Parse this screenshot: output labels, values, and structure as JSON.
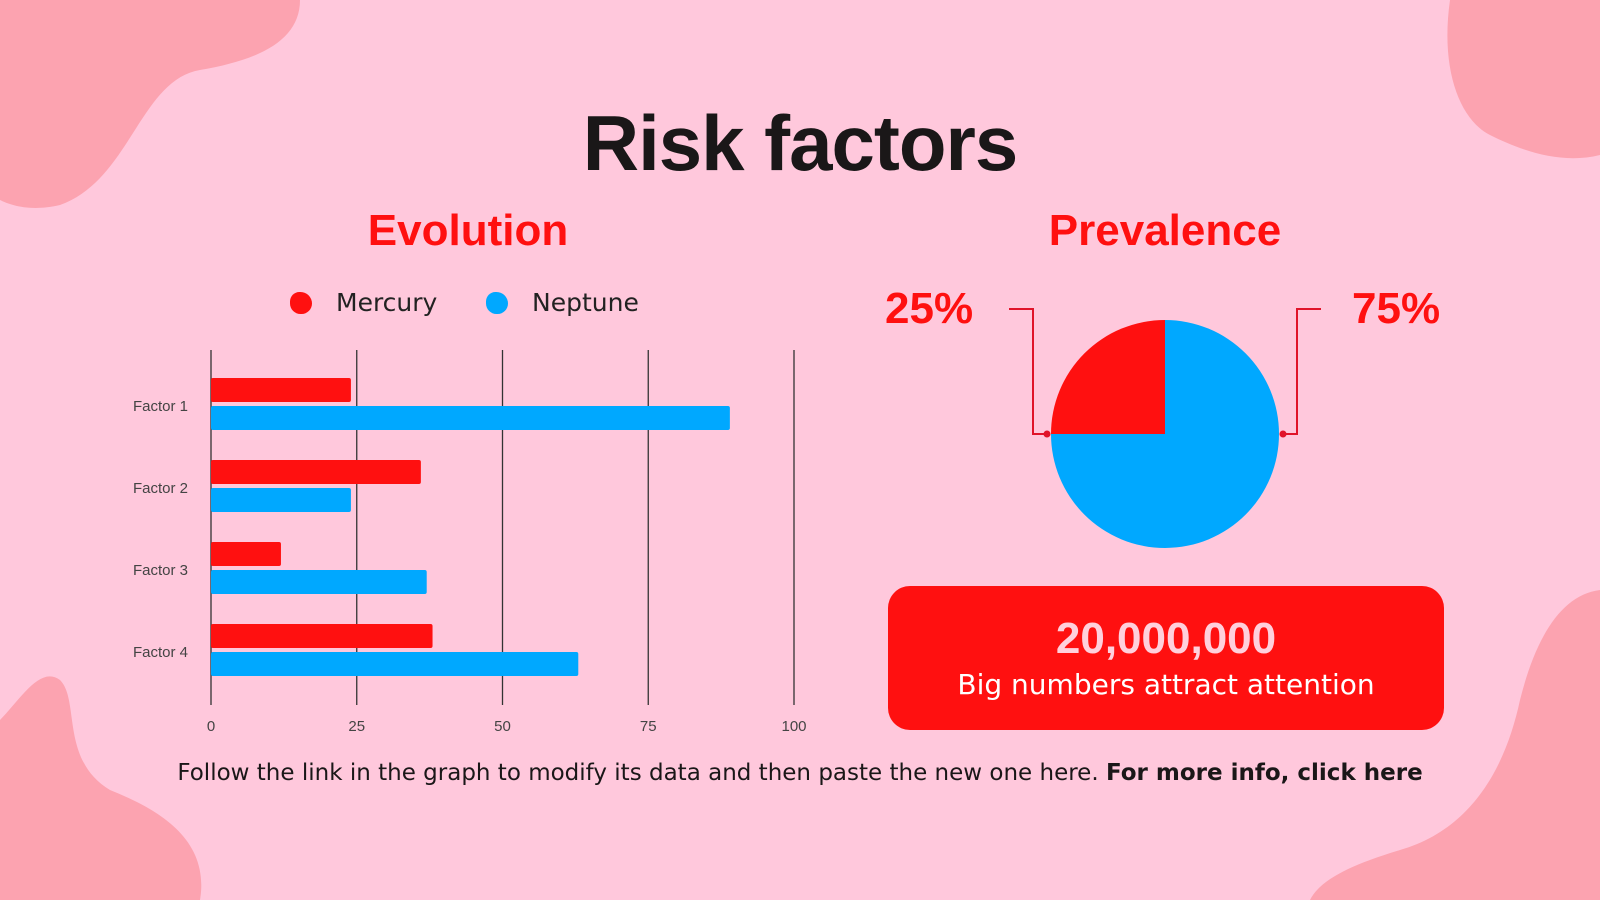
{
  "slide": {
    "title": "Risk factors",
    "footer_text": "Follow the link in the graph to modify its data and then paste the new one here. ",
    "footer_link": "For more info, click here"
  },
  "colors": {
    "background": "#ffc8dc",
    "blob": "#fca3b0",
    "mercury": "#ff1010",
    "neptune": "#00a8ff",
    "text": "#1a1718"
  },
  "big_number": {
    "value": "20,000,000",
    "caption": "Big numbers attract attention"
  },
  "chart_data": [
    {
      "type": "bar",
      "orientation": "horizontal",
      "title": "Evolution",
      "categories": [
        "Factor 1",
        "Factor 2",
        "Factor 3",
        "Factor 4"
      ],
      "series": [
        {
          "name": "Mercury",
          "values": [
            24,
            36,
            12,
            38
          ]
        },
        {
          "name": "Neptune",
          "values": [
            89,
            24,
            37,
            63
          ]
        }
      ],
      "xlim": [
        0,
        100
      ],
      "xticks": [
        "0",
        "25",
        "50",
        "75",
        "100"
      ],
      "grid": true,
      "legend": "top"
    },
    {
      "type": "pie",
      "title": "Prevalence",
      "slices": [
        {
          "value": 25,
          "label": "25%",
          "color": "#ff1010"
        },
        {
          "value": 75,
          "label": "75%",
          "color": "#00a8ff"
        }
      ]
    }
  ]
}
